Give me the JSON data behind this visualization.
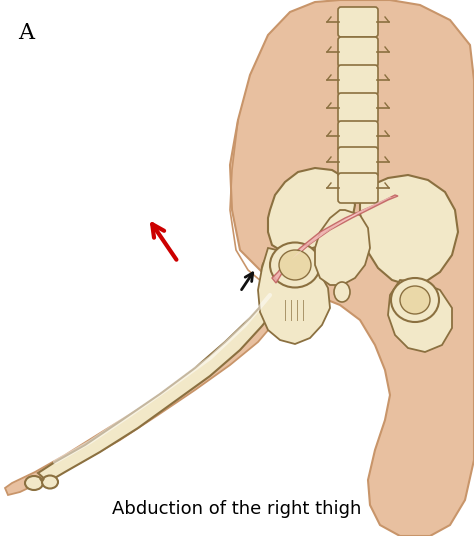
{
  "background_color": "#ffffff",
  "skin_color": "#E8C0A0",
  "skin_dark": "#C8956A",
  "skin_mid": "#D4A882",
  "bone_fill": "#F2E8C8",
  "bone_outline": "#8B7040",
  "bone_inner": "#EAD8A8",
  "muscle_color": "#F0B0B0",
  "muscle_highlight": "#FFD8D8",
  "muscle_outline": "#C06060",
  "arrow_red": "#CC0000",
  "arrow_black": "#111111",
  "label_A": "A",
  "label_text": "Abduction of the right thigh",
  "label_fontsize": 13,
  "label_A_fontsize": 16,
  "fig_width": 4.74,
  "fig_height": 5.36,
  "dpi": 100
}
